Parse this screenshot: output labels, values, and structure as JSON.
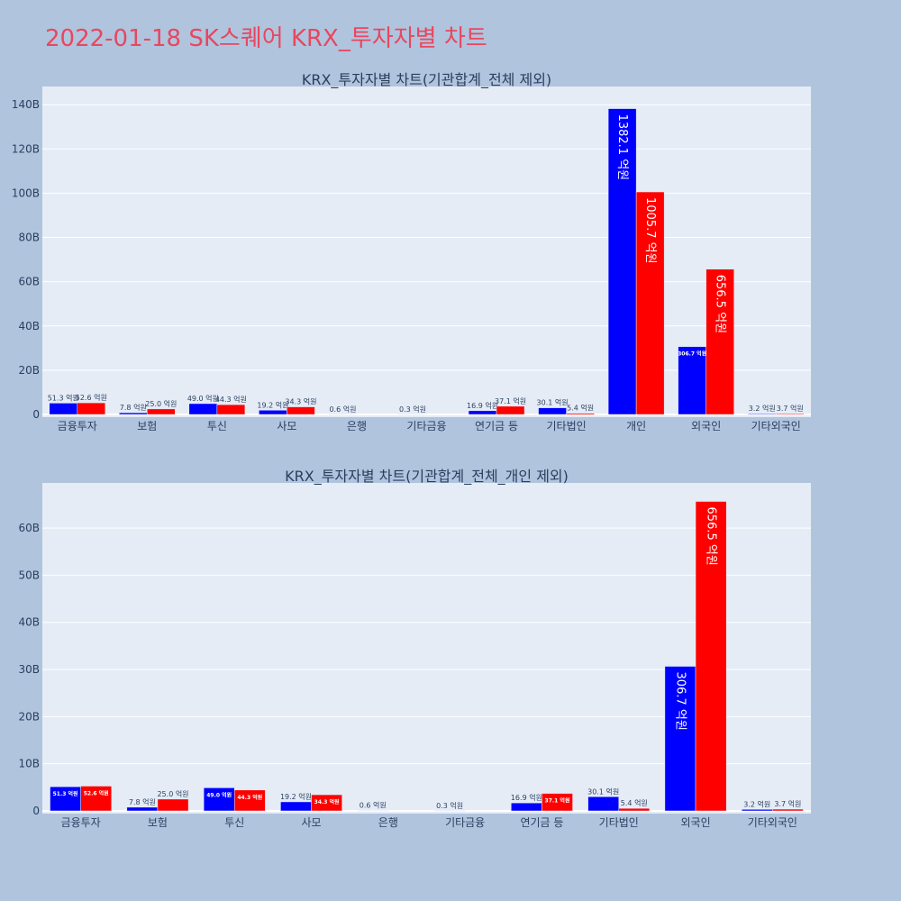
{
  "page": {
    "title": "2022-01-18 SK스퀘어 KRX_투자자별 차트"
  },
  "chart_data": [
    {
      "type": "bar",
      "title": "KRX_투자자별 차트(기관합계_전체 제외)",
      "categories": [
        "금융투자",
        "보험",
        "투신",
        "사모",
        "은행",
        "기타금융",
        "연기금 등",
        "기타법인",
        "개인",
        "외국인",
        "기타외국인"
      ],
      "ylim": [
        0,
        147
      ],
      "yticks": [
        0,
        20,
        40,
        60,
        80,
        100,
        120,
        140
      ],
      "ytick_labels": [
        "0",
        "20B",
        "40B",
        "60B",
        "80B",
        "100B",
        "120B",
        "140B"
      ],
      "grid": true,
      "series": [
        {
          "color": "#0000ff",
          "values": [
            5.13,
            0.78,
            4.9,
            1.92,
            0.06,
            0.03,
            1.69,
            3.01,
            138.21,
            30.67,
            0.32
          ],
          "labels": [
            "51.3 억원",
            "7.8 억원",
            "49.0 억원",
            "19.2 억원",
            "0.6 억원",
            "0.3 억원",
            "16.9 억원",
            "30.1 억원",
            "1382.1 억원",
            "306.7 억원",
            "3.2 억원"
          ]
        },
        {
          "color": "#ff0000",
          "values": [
            5.26,
            2.5,
            4.43,
            3.43,
            0,
            0,
            3.71,
            0.54,
            100.57,
            65.65,
            0.37
          ],
          "labels": [
            "52.6 억원",
            "25.0 억원",
            "44.3 억원",
            "34.3 억원",
            "",
            "",
            "37.1 억원",
            "5.4 억원",
            "1005.7 억원",
            "656.5 억원",
            "3.7 억원"
          ]
        }
      ]
    },
    {
      "type": "bar",
      "title": "KRX_투자자별 차트(기관합계_전체_개인 제외)",
      "categories": [
        "금융투자",
        "보험",
        "투신",
        "사모",
        "은행",
        "기타금융",
        "연기금 등",
        "기타법인",
        "외국인",
        "기타외국인"
      ],
      "ylim": [
        0,
        69
      ],
      "yticks": [
        0,
        10,
        20,
        30,
        40,
        50,
        60
      ],
      "ytick_labels": [
        "0",
        "10B",
        "20B",
        "30B",
        "40B",
        "50B",
        "60B"
      ],
      "grid": true,
      "series": [
        {
          "color": "#0000ff",
          "values": [
            5.13,
            0.78,
            4.9,
            1.92,
            0.06,
            0.03,
            1.69,
            3.01,
            30.67,
            0.32
          ],
          "labels": [
            "51.3 억원",
            "7.8 억원",
            "49.0 억원",
            "19.2 억원",
            "0.6 억원",
            "0.3 억원",
            "16.9 억원",
            "30.1 억원",
            "306.7 억원",
            "3.2 억원"
          ]
        },
        {
          "color": "#ff0000",
          "values": [
            5.26,
            2.5,
            4.43,
            3.43,
            0,
            0,
            3.71,
            0.54,
            65.65,
            0.37
          ],
          "labels": [
            "52.6 억원",
            "25.0 억원",
            "44.3 억원",
            "34.3 억원",
            "",
            "",
            "37.1 억원",
            "5.4 억원",
            "656.5 억원",
            "3.7 억원"
          ]
        }
      ]
    }
  ]
}
